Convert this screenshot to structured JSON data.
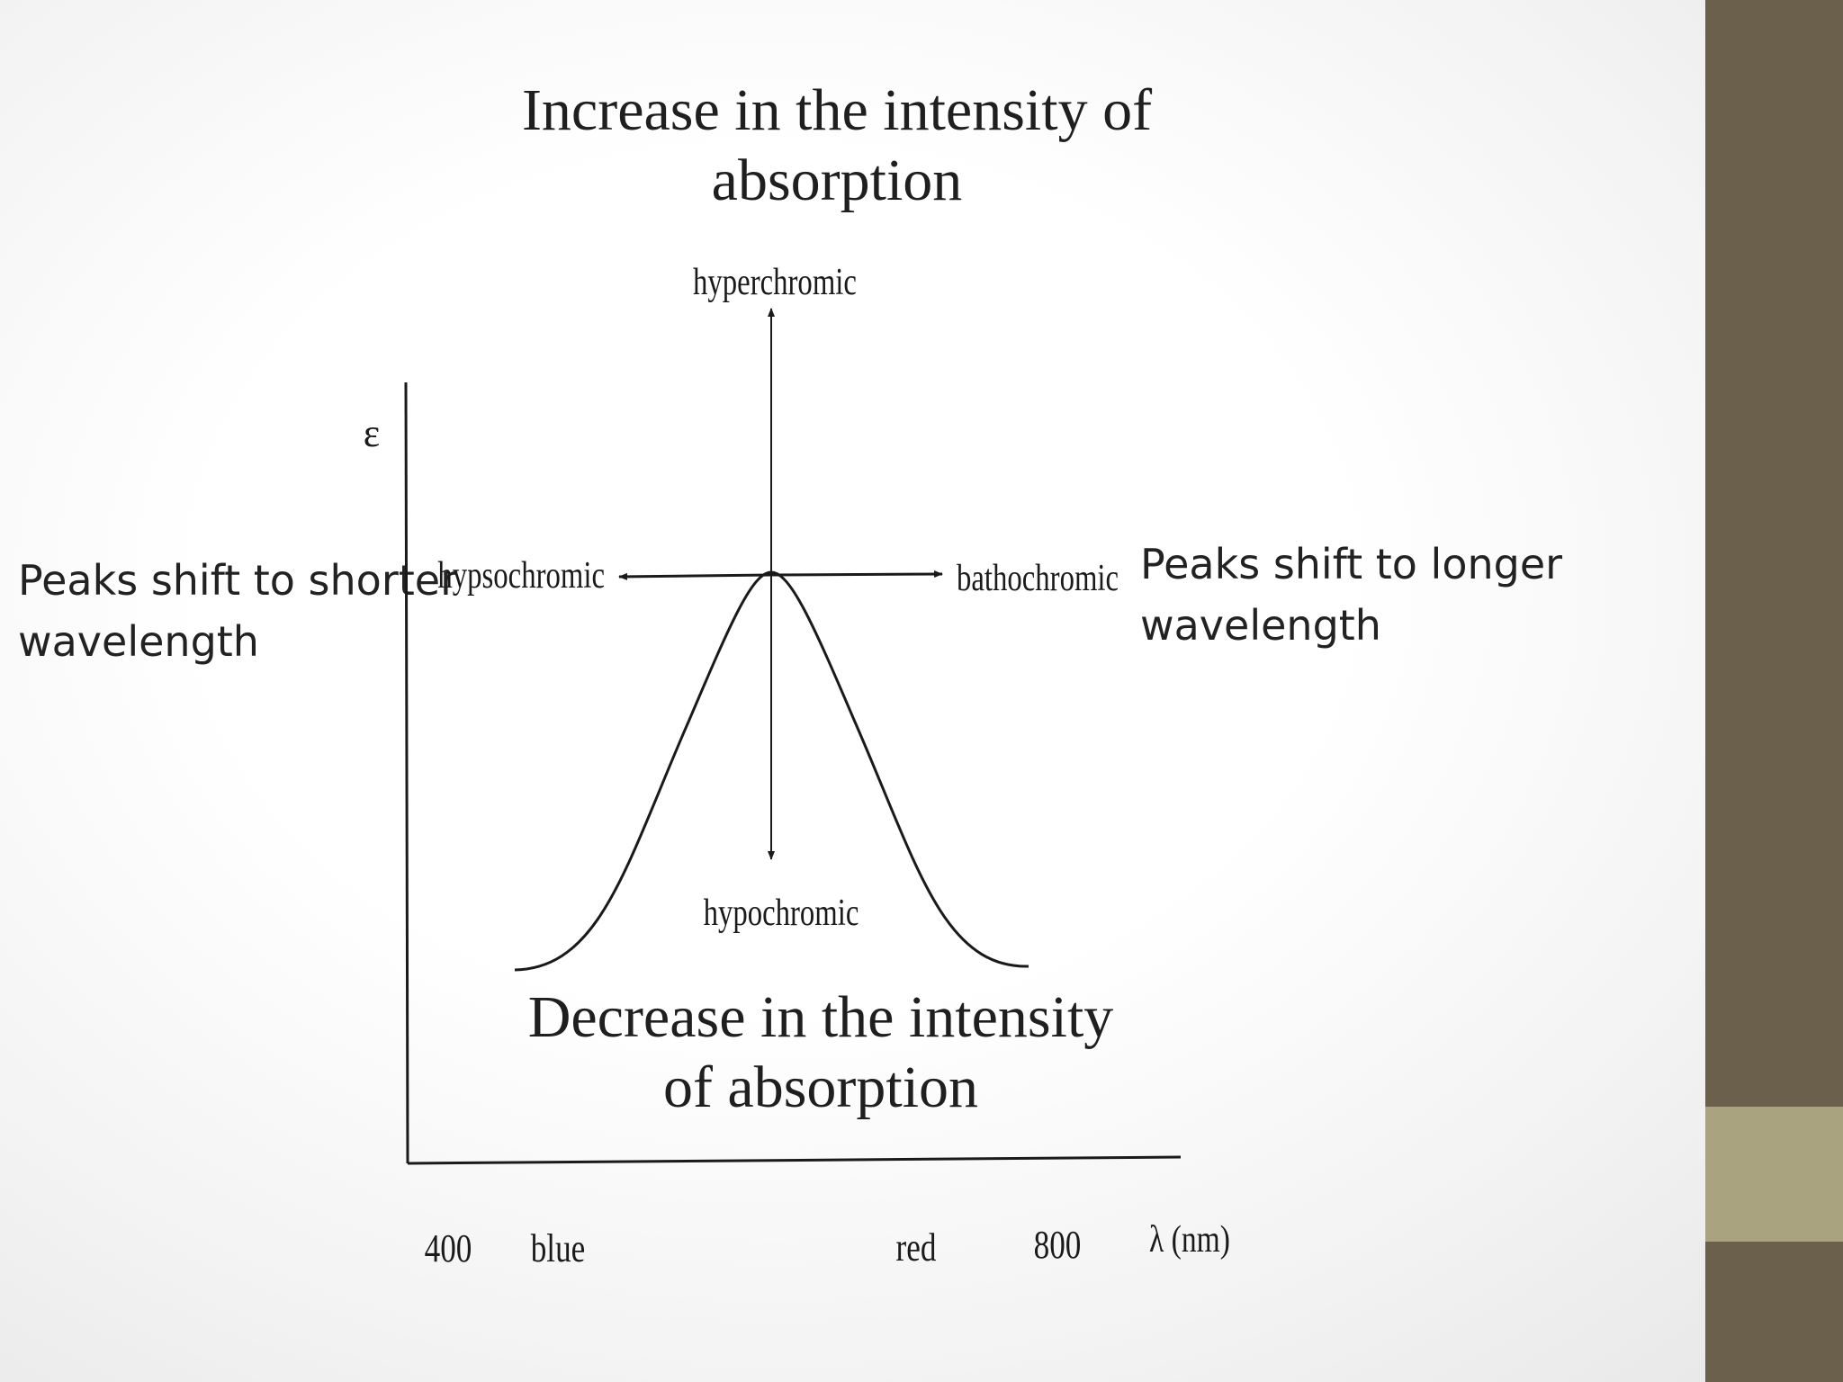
{
  "colors": {
    "sidebar_dark": "#6b604b",
    "sidebar_light": "#aaa37f",
    "line": "#1a1a1a"
  },
  "captions": {
    "increase_line1": "Increase in the intensity of",
    "increase_line2": "absorption",
    "decrease_line1": "Decrease in the intensity",
    "decrease_line2": "of absorption"
  },
  "notes": {
    "shorter_line1": "Peaks shift to shorter",
    "shorter_line2": "wavelength",
    "longer_line1": "Peaks shift to longer",
    "longer_line2": "wavelength"
  },
  "diagram": {
    "y_axis_symbol": "ε",
    "x_axis_symbol": "λ (nm)",
    "tick_400": "400",
    "tick_blue": "blue",
    "tick_red": "red",
    "tick_800": "800",
    "label_hyperchromic": "hyperchromic",
    "label_hypochromic": "hypochromic",
    "label_hypsochromic": "hypsochromic",
    "label_bathochromic": "bathochromic"
  }
}
